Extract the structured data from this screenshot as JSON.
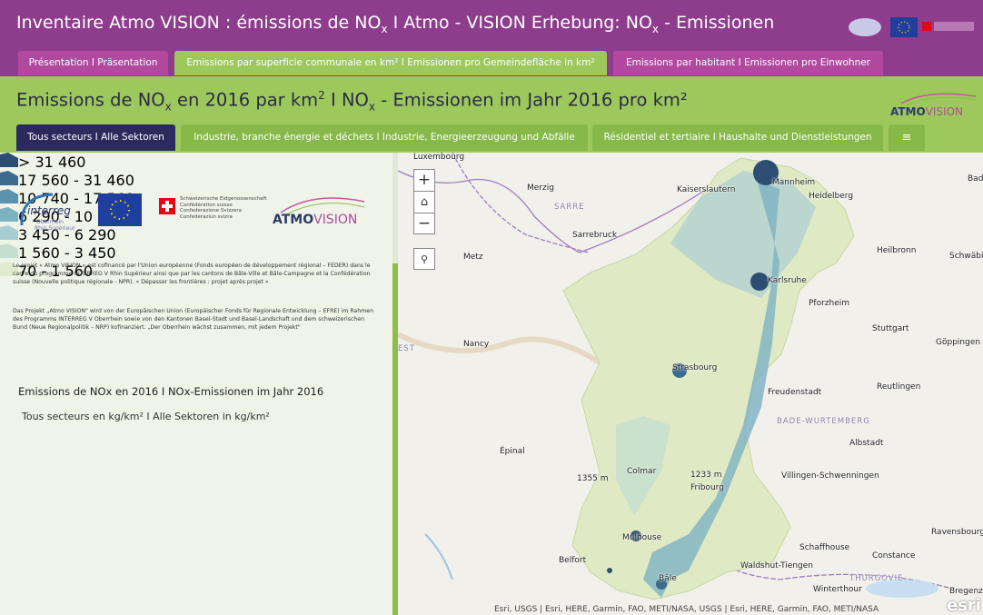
{
  "header": {
    "title": [
      "Inventaire Atmo VISION : émissions de NO",
      "x",
      "  I Atmo - VISION Erhebung: NO",
      "x",
      " - Emissionen"
    ]
  },
  "tabs": [
    "Présentation I Präsentation",
    "Emissions par superficie communale en km² I Emissionen pro Gemeindefläche in km²",
    "Emissions par habitant I Emissionen pro Einwohner"
  ],
  "subtitle": [
    "Emissions de NO",
    "x",
    " en 2016 par km",
    "2",
    " I NO",
    "x",
    " - Emissionen im Jahr 2016 pro km²"
  ],
  "sector_tabs": [
    "Tous secteurs I Alle Sektoren",
    "Industrie, branche énergie et déchets I Industrie, Energieerzeugung und Abfälle",
    "Résidentiel et tertiaire I Haushalte und Dienstleistungen"
  ],
  "brand_logo": [
    "ATMO",
    "VISION"
  ],
  "logos": {
    "interreg": [
      "interreg",
      "Oberrhein",
      "Rhin Supérieur"
    ],
    "swiss": [
      "Schweizerische Eidgenossenschaft",
      "Confédération suisse",
      "Confederazione Svizzera",
      "Confederaziun svizra"
    ],
    "atmovision": [
      "ATMO",
      "VISION"
    ]
  },
  "paragraphs": [
    "Le projet « Atmo VISION » est cofinancé par l'Union européenne (Fonds européen de développement régional – FEDER) dans le cadre du programme INTERREG V Rhin Supérieur ainsi que par les cantons de Bâle-Ville et Bâle-Campagne et la Confédération suisse (Nouvelle politique régionale - NPR). « Dépasser les frontières : projet après projet »",
    "Das Projekt „Atmo VISION\" wird von der Europäischen Union (Europäischer Fonds für Regionale Entwicklung – EFRE) im Rahmen des Programms INTERREG V Oberrhein sowie von den Kantonen Basel-Stadt und Basel-Landschaft und dem schweizerischen Bund (Neue Regionalpolitik – NRP) kofinanziert. „Der Oberrhein wächst zusammen, mit jedem Projekt\""
  ],
  "legend": {
    "title": "Emissions de NOx en 2016 I NOx-Emissionen im Jahr 2016",
    "subtitle": "Tous secteurs en kg/km² I Alle Sektoren in kg/km²",
    "items": [
      {
        "label": "> 31 460",
        "color": "#2d4d72"
      },
      {
        "label": "17 560 - 31 460",
        "color": "#3d6b8e"
      },
      {
        "label": "10 740 - 17 560",
        "color": "#5a93ad"
      },
      {
        "label": "6 290 - 10 740",
        "color": "#7db2c3"
      },
      {
        "label": "3 450 - 6 290",
        "color": "#a5cdd2"
      },
      {
        "label": "1 560 - 3 450",
        "color": "#c4ded0"
      },
      {
        "label": "70 - 1 560",
        "color": "#dfebcd"
      }
    ]
  },
  "map": {
    "places": [
      "Luxembourg",
      "Merzig",
      "SARRE",
      "Kaiserslautern",
      "Mannheim",
      "Heidelberg",
      "Bad Me",
      "Sarrebruck",
      "Metz",
      "Heilbronn",
      "Schwäbi",
      "Karlsruhe",
      "Pforzheim",
      "Stuttgart",
      "Göppingen",
      "EST",
      "Nancy",
      "Strasbourg",
      "Freudenstadt",
      "Reutlingen",
      "BADE-WURTEMBERG",
      "Albstadt",
      "Épinal",
      "Colmar",
      "1355 m",
      "1233 m",
      "Villingen-Schwenningen",
      "Fribourg",
      "Ravensbourg",
      "Mulhouse",
      "Belfort",
      "Schaffhouse",
      "Constance",
      "Waldshut-Tiengen",
      "Bâle",
      "THURGOVIE",
      "Winterthour",
      "Bregenz"
    ],
    "attribution": "Esri, USGS | Esri, HERE, Garmin, FAO, METI/NASA, USGS | Esri, HERE, Garmin, FAO, METI/NASA",
    "esri": "esri"
  }
}
